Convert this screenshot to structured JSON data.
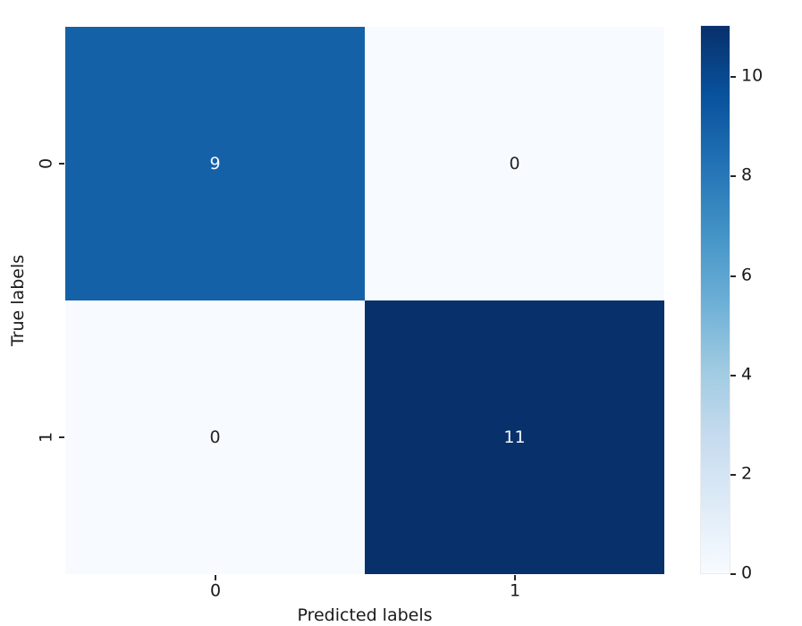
{
  "chart_data": {
    "type": "heatmap",
    "title": "",
    "xlabel": "Predicted labels",
    "ylabel": "True labels",
    "x_tick_labels": [
      "0",
      "1"
    ],
    "y_tick_labels": [
      "0",
      "1"
    ],
    "categories_x": [
      0,
      1
    ],
    "categories_y": [
      0,
      1
    ],
    "matrix": [
      [
        9,
        0
      ],
      [
        0,
        11
      ]
    ],
    "cells": [
      {
        "row": 0,
        "col": 0,
        "value": "9",
        "bg": "#1561a8",
        "fg": "#f4f9fd"
      },
      {
        "row": 0,
        "col": 1,
        "value": "0",
        "bg": "#f7fbff",
        "fg": "#262626"
      },
      {
        "row": 1,
        "col": 0,
        "value": "0",
        "bg": "#f7fbff",
        "fg": "#262626"
      },
      {
        "row": 1,
        "col": 1,
        "value": "11",
        "bg": "#08306b",
        "fg": "#f4f9fd"
      }
    ],
    "colormap": "Blues",
    "grid": false,
    "colorbar": {
      "position": "right",
      "vmin": 0,
      "vmax": 11,
      "ticks": [
        0,
        2,
        4,
        6,
        8,
        10
      ],
      "tick_labels": [
        "10",
        "8",
        "6",
        "4",
        "2",
        "0"
      ],
      "gradient_stops": [
        {
          "color": "#08306b",
          "pos": "0%"
        },
        {
          "color": "#08519c",
          "pos": "12.5%"
        },
        {
          "color": "#2171b5",
          "pos": "25%"
        },
        {
          "color": "#4292c6",
          "pos": "37.5%"
        },
        {
          "color": "#6baed6",
          "pos": "50%"
        },
        {
          "color": "#9ecae1",
          "pos": "62.5%"
        },
        {
          "color": "#c6dbef",
          "pos": "75%"
        },
        {
          "color": "#deebf7",
          "pos": "87.5%"
        },
        {
          "color": "#f7fbff",
          "pos": "100%"
        }
      ]
    },
    "colors": {
      "background": "#ffffff",
      "tick_color": "#262626",
      "text_color": "#1a1a1a"
    }
  }
}
